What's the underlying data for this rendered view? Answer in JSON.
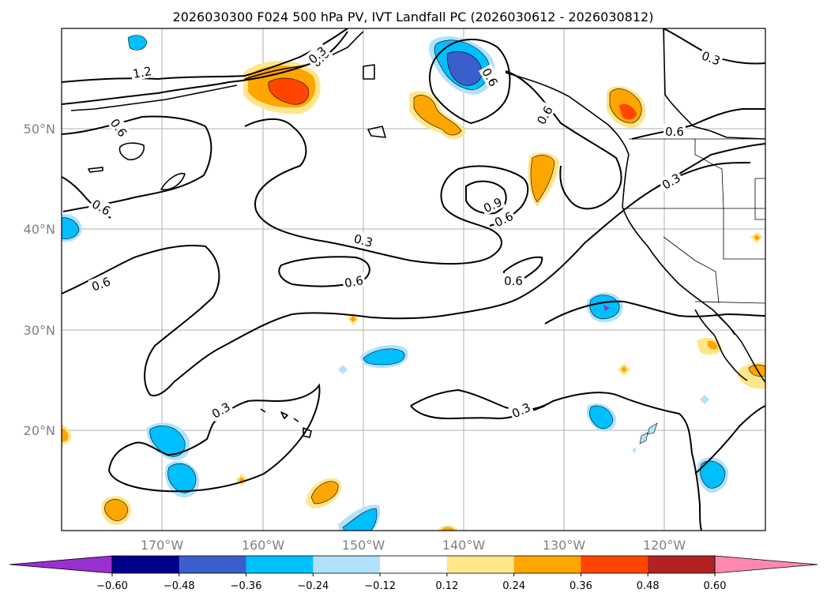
{
  "chart_data": {
    "type": "map-contour",
    "title": "2026030300 F024 500 hPa PV, IVT Landfall PC (2026030612 - 2026030812)",
    "lon_ticks": [
      "170°W",
      "160°W",
      "150°W",
      "140°W",
      "130°W",
      "120°W"
    ],
    "lat_ticks": [
      "50°N",
      "40°N",
      "30°N",
      "20°N"
    ],
    "extent": {
      "lon": [
        -180,
        -110
      ],
      "lat": [
        10,
        60
      ]
    },
    "grid": true,
    "contour_levels": [
      0.3,
      0.6,
      0.9,
      1.2
    ],
    "contour_labels": [
      "1.2",
      "0.6",
      "0.6",
      "0.6",
      "0.6",
      "0.3",
      "0.6",
      "0.9",
      "0.6",
      "0.6",
      "0.6",
      "0.3",
      "0.3",
      "0.3",
      "0.3",
      "0.6",
      "0.6",
      "0.3"
    ],
    "colorbar": {
      "ticks": [
        "−0.60",
        "−0.48",
        "−0.36",
        "−0.24",
        "−0.12",
        "0.12",
        "0.24",
        "0.36",
        "0.48",
        "0.60"
      ],
      "colors": [
        "#9b30d0",
        "#00008b",
        "#3a5fcd",
        "#00bfff",
        "#b0e2ff",
        "#ffffff",
        "#ffe68c",
        "#ffa500",
        "#ff4500",
        "#b22222",
        "#ff88b0"
      ],
      "extend": "both"
    }
  }
}
